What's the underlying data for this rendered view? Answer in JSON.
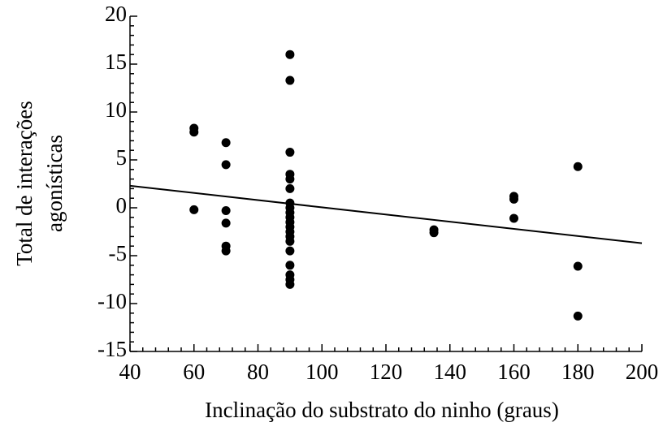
{
  "chart_data": {
    "type": "scatter",
    "xlabel": "Inclinação do substrato do ninho (graus)",
    "ylabel": [
      "Total de interações",
      "agonísticas"
    ],
    "x": [
      60,
      60,
      60,
      70,
      70,
      70,
      70,
      70,
      70,
      90,
      90,
      90,
      90,
      90,
      90,
      90,
      90,
      90,
      90,
      90,
      90,
      90,
      90,
      90,
      90,
      90,
      90,
      90,
      90,
      135,
      135,
      160,
      160,
      160,
      180,
      180,
      180
    ],
    "values": [
      8.3,
      7.9,
      -0.2,
      6.8,
      4.5,
      -0.3,
      -1.6,
      -4.0,
      -4.5,
      16.0,
      13.3,
      5.8,
      3.5,
      3.0,
      2.0,
      0.5,
      0.0,
      -0.5,
      -1.0,
      -1.5,
      -2.0,
      -2.5,
      -3.0,
      -3.5,
      -4.5,
      -6.0,
      -7.0,
      -7.5,
      -8.0,
      -2.3,
      -2.6,
      1.2,
      0.9,
      -1.1,
      4.3,
      -6.1,
      -11.3
    ],
    "color": "#000000",
    "trend": {
      "x": [
        40,
        200
      ],
      "y": [
        2.3,
        -3.7
      ]
    },
    "xlim": [
      40,
      200
    ],
    "xticks": [
      40,
      60,
      80,
      100,
      120,
      140,
      160,
      180,
      200
    ],
    "ylim": [
      -15,
      20
    ],
    "yticks": [
      -15,
      -10,
      -5,
      0,
      5,
      10,
      15,
      20
    ]
  }
}
